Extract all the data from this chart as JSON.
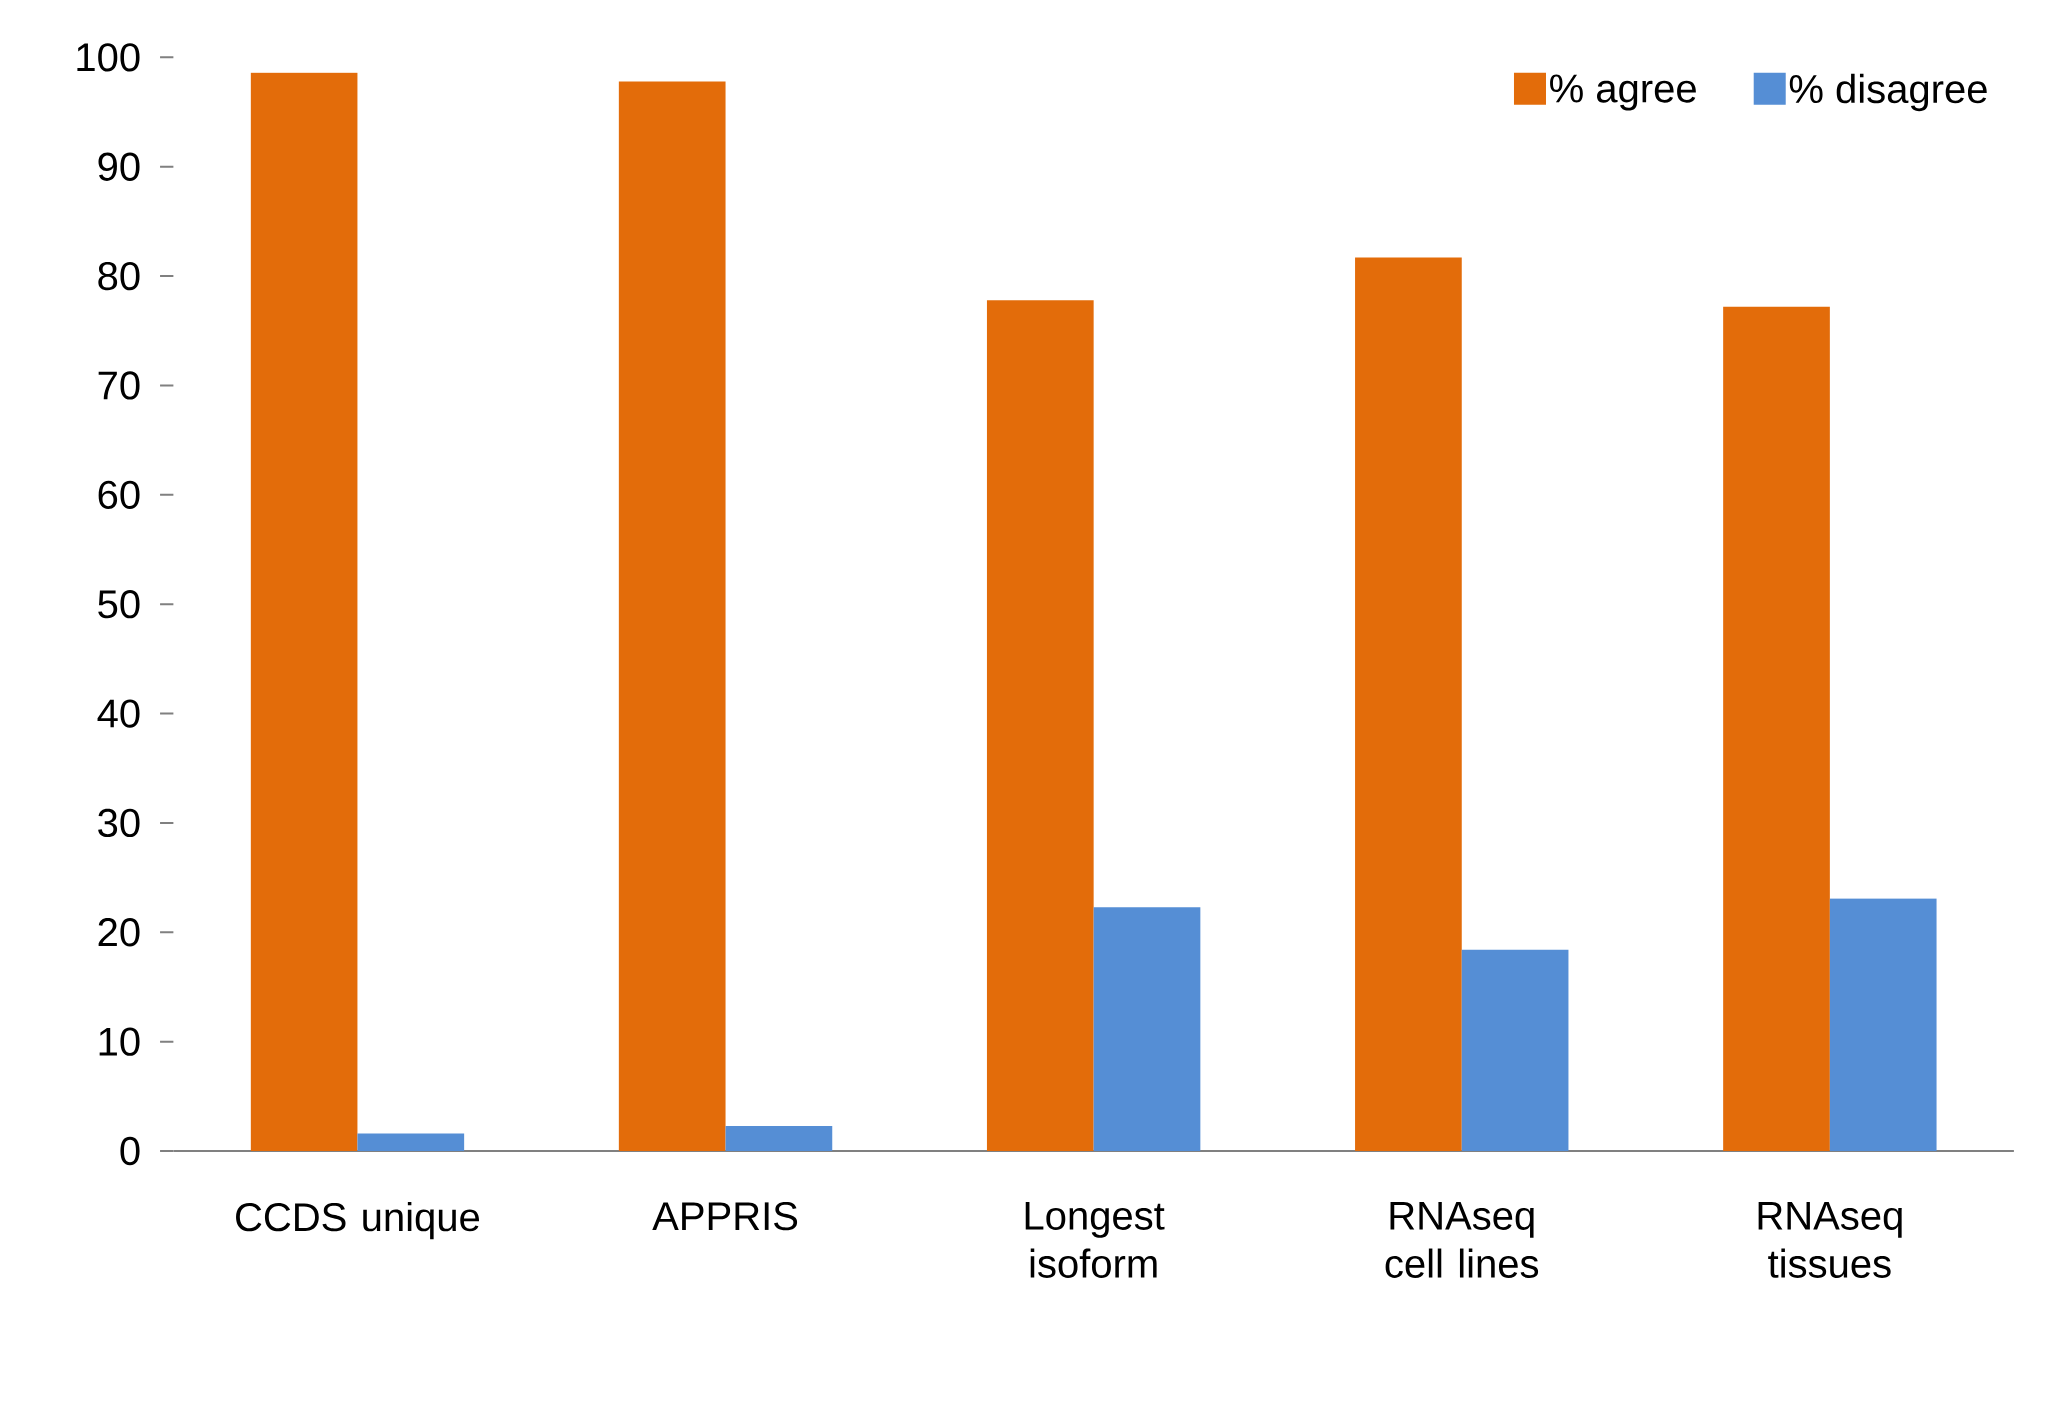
{
  "chart_data": {
    "type": "bar",
    "categories": [
      "CCDS unique",
      "APPRIS",
      "Longest isoform",
      "RNAseq cell lines",
      "RNAseq tissues"
    ],
    "series": [
      {
        "name": "% agree",
        "color": "#e36c0a",
        "values": [
          98.6,
          97.8,
          77.8,
          81.7,
          77.2
        ]
      },
      {
        "name": "% disagree",
        "color": "#558ed5",
        "values": [
          1.6,
          2.3,
          22.3,
          18.4,
          23.1
        ]
      }
    ],
    "ylim": [
      0,
      100
    ],
    "yticks": [
      0,
      10,
      20,
      30,
      40,
      50,
      60,
      70,
      80,
      90,
      100
    ],
    "grid": false,
    "legend": "top right"
  }
}
